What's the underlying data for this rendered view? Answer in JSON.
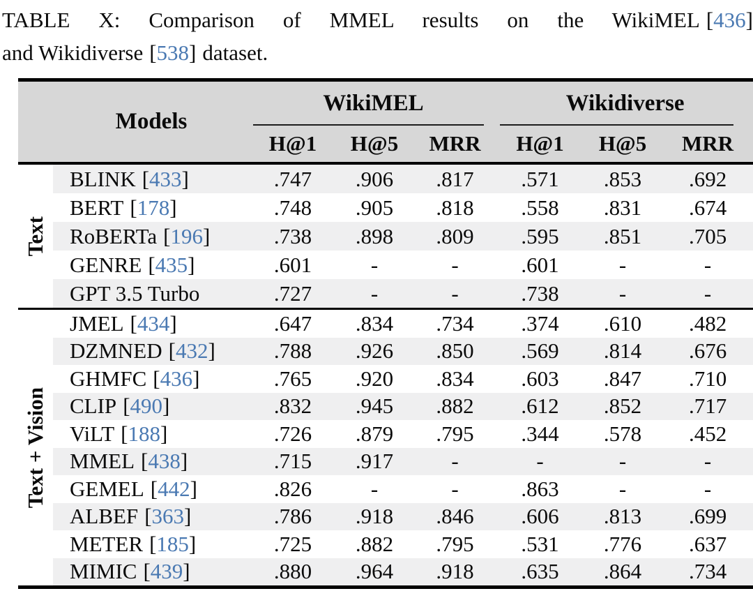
{
  "caption": {
    "line1_text": "TABLE X: Comparison of MMEL results on the WikiMEL",
    "line1_cite": "436",
    "line2_text1": "and Wikidiverse",
    "line2_cite": "538",
    "line2_text2": "dataset."
  },
  "symbols": {
    "bracket_open": "[",
    "bracket_close": "]"
  },
  "colors": {
    "citation": "#4a79b2",
    "header_bg": "#d7d7d7",
    "stripe_bg": "#efeff0",
    "rule": "#000000"
  },
  "table": {
    "header": {
      "models_label": "Models",
      "groups": [
        {
          "label": "WikiMEL",
          "subs": [
            "H@1",
            "H@5",
            "MRR"
          ]
        },
        {
          "label": "Wikidiverse",
          "subs": [
            "H@1",
            "H@5",
            "MRR"
          ]
        }
      ]
    },
    "groups": [
      {
        "label": "Text",
        "rows": [
          {
            "model": "BLINK",
            "cite": "433",
            "values": [
              ".747",
              ".906",
              ".817",
              ".571",
              ".853",
              ".692"
            ]
          },
          {
            "model": "BERT",
            "cite": "178",
            "values": [
              ".748",
              ".905",
              ".818",
              ".558",
              ".831",
              ".674"
            ]
          },
          {
            "model": "RoBERTa",
            "cite": "196",
            "values": [
              ".738",
              ".898",
              ".809",
              ".595",
              ".851",
              ".705"
            ]
          },
          {
            "model": "GENRE",
            "cite": "435",
            "values": [
              ".601",
              "-",
              "-",
              ".601",
              "-",
              "-"
            ]
          },
          {
            "model": "GPT 3.5 Turbo",
            "cite": null,
            "values": [
              ".727",
              "-",
              "-",
              ".738",
              "-",
              "-"
            ]
          }
        ]
      },
      {
        "label": "Text + Vision",
        "rows": [
          {
            "model": "JMEL",
            "cite": "434",
            "values": [
              ".647",
              ".834",
              ".734",
              ".374",
              ".610",
              ".482"
            ]
          },
          {
            "model": "DZMNED",
            "cite": "432",
            "values": [
              ".788",
              ".926",
              ".850",
              ".569",
              ".814",
              ".676"
            ]
          },
          {
            "model": "GHMFC",
            "cite": "436",
            "values": [
              ".765",
              ".920",
              ".834",
              ".603",
              ".847",
              ".710"
            ]
          },
          {
            "model": "CLIP",
            "cite": "490",
            "values": [
              ".832",
              ".945",
              ".882",
              ".612",
              ".852",
              ".717"
            ]
          },
          {
            "model": "ViLT",
            "cite": "188",
            "values": [
              ".726",
              ".879",
              ".795",
              ".344",
              ".578",
              ".452"
            ]
          },
          {
            "model": "MMEL",
            "cite": "438",
            "values": [
              ".715",
              ".917",
              "-",
              "-",
              "-",
              "-"
            ]
          },
          {
            "model": "GEMEL",
            "cite": "442",
            "values": [
              ".826",
              "-",
              "-",
              ".863",
              "-",
              "-"
            ]
          },
          {
            "model": "ALBEF",
            "cite": "363",
            "values": [
              ".786",
              ".918",
              ".846",
              ".606",
              ".813",
              ".699"
            ]
          },
          {
            "model": "METER",
            "cite": "185",
            "values": [
              ".725",
              ".882",
              ".795",
              ".531",
              ".776",
              ".637"
            ]
          },
          {
            "model": "MIMIC",
            "cite": "439",
            "values": [
              ".880",
              ".964",
              ".918",
              ".635",
              ".864",
              ".734"
            ]
          }
        ]
      }
    ]
  }
}
